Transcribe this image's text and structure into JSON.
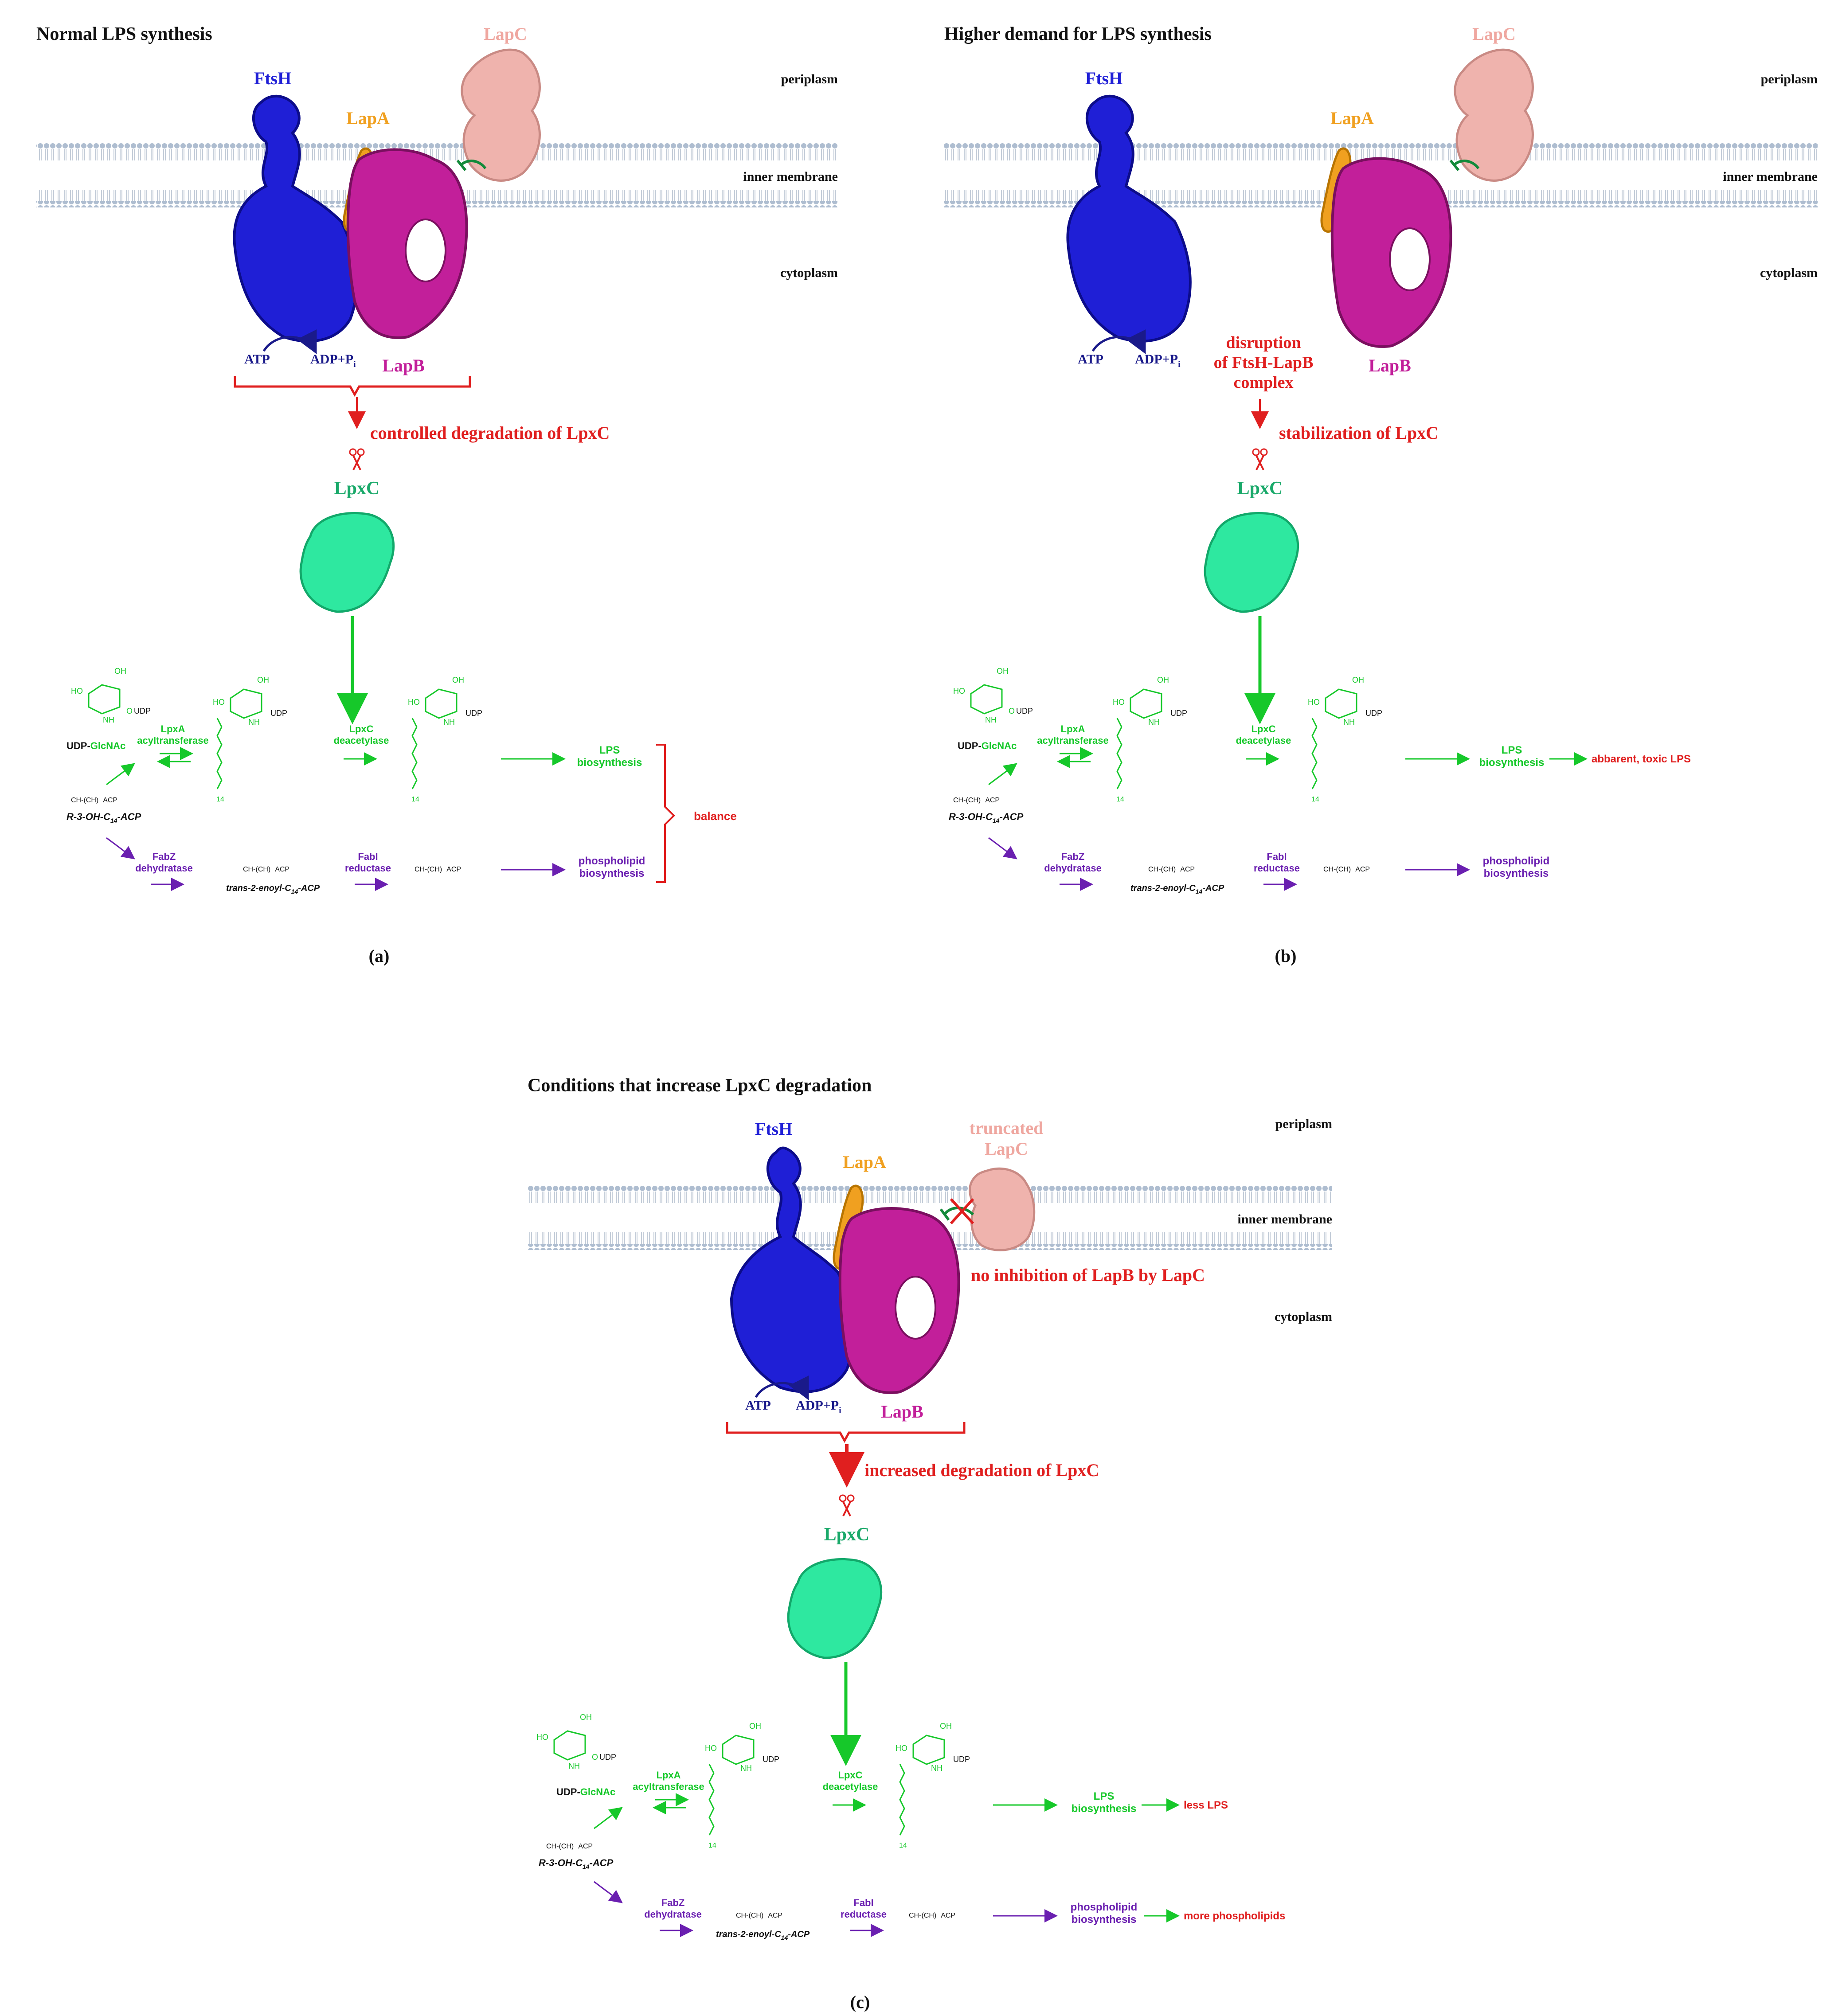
{
  "colors": {
    "blue": "#1f1fd6",
    "pink": "#c21f9a",
    "lapa": "#f0a020",
    "lapc": "#efb3ad",
    "green": "#16c82a",
    "teal": "#1aa96a",
    "lpxc_fill": "#2ee8a0",
    "red": "#e01f1f",
    "purple": "#6a1fb0",
    "membrane": "#a9b9cd"
  },
  "common": {
    "periplasm": "periplasm",
    "inner_membrane": "inner membrane",
    "cytoplasm": "cytoplasm",
    "ftsh": "FtsH",
    "lapa": "LapA",
    "lapb": "LapB",
    "lapc": "LapC",
    "lpxc": "LpxC",
    "atp": "ATP",
    "adp": "ADP+P",
    "adp_sub": "i",
    "udp": "UDP",
    "glcnac": "GlcNAc",
    "lpxa1": "LpxA",
    "lpxa2": "acyltransferase",
    "lpxc1": "LpxC",
    "lpxc2": "deacetylase",
    "lps1": "LPS",
    "lps2": "biosynthesis",
    "ph1": "phospholipid",
    "ph2": "biosynthesis",
    "fabz1": "FabZ",
    "fabz2": "dehydratase",
    "fabi1": "FabI",
    "fabi2": "reductase",
    "r3oh": "R-3-OH-C",
    "r3oh_sub": "14",
    "acp_suffix": "-ACP",
    "trans": "trans-2-enoyl-C",
    "trans_sub": "14",
    "acp": "ACP",
    "ch3": "CH",
    "n14": "14",
    "oh": "OH",
    "ho": "HO",
    "nh": "NH",
    "nh2": "NH",
    "o": "O"
  },
  "panel_a": {
    "title": "Normal LPS synthesis",
    "label": "(a)",
    "arrow_text": "controlled degradation of LpxC",
    "outcome": "balance"
  },
  "panel_b": {
    "title": "Higher demand for LPS synthesis",
    "label": "(b)",
    "disruption": [
      "disruption",
      "of FtsH-LapB",
      "complex"
    ],
    "arrow_text": "stabilization of LpxC",
    "lps_outcome": "abbarent, toxic LPS"
  },
  "panel_c": {
    "title": "Conditions that increase LpxC degradation",
    "label": "(c)",
    "lapc_top": "truncated",
    "lapc_bottom": "LapC",
    "no_inhibition": "no inhibition of LapB by LapC",
    "arrow_text": "increased degradation of LpxC",
    "lps_outcome": "less LPS",
    "ph_outcome": "more phospholipids"
  }
}
